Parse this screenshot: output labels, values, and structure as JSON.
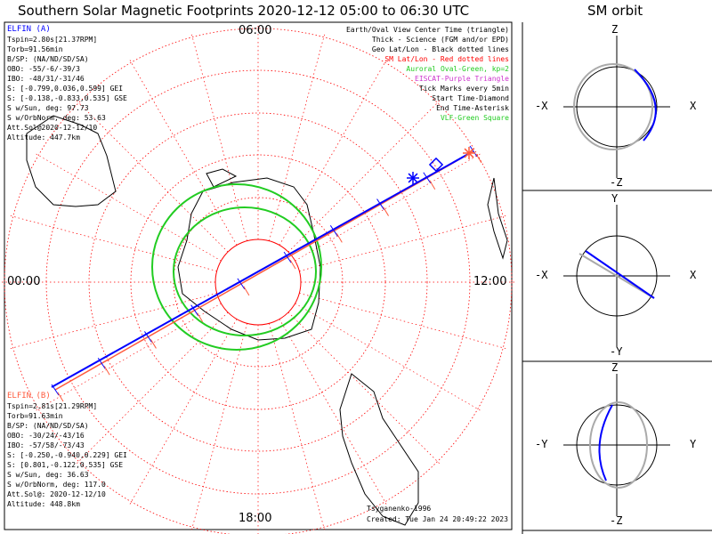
{
  "title": "Southern Solar Magnetic Footprints 2020-12-12 05:00 to 06:30 UTC",
  "sm_orbit_title": "SM orbit",
  "clock_labels": {
    "top": "06:00",
    "left": "00:00",
    "right": "12:00",
    "bottom": "18:00"
  },
  "elfin_a": {
    "name": "ELFIN (A)",
    "lines": [
      "Tspin=2.80s[21.37RPM]",
      "Torb=91.56min",
      "B/SP: (NA/ND/SD/SA)",
      "OBO: -55/-6/-39/3",
      "IBO: -48/31/-31/46",
      "S: [-0.799,0.036,0.599] GEI",
      "S: [-0.138,-0.833,0.535] GSE",
      "S w/Sun, deg: 97.73",
      "S w/OrbNorm, deg: 53.63",
      "Att.Sol@2020-12-12/10",
      "Altitude: 447.7km"
    ],
    "color": "#0000ff"
  },
  "elfin_b": {
    "name": "ELFIN (B)",
    "lines": [
      "Tspin=2.81s[21.29RPM]",
      "Torb=91.63min",
      "B/SP: (NA/ND/SD/SA)",
      "OBO: -30/24/-43/16",
      "IBO: -57/58/-73/43",
      "S: [-0.250,-0.940,0.229] GEI",
      "S: [0.801,-0.122,0.535] GSE",
      "S w/Sun, deg: 36.63",
      "S w/OrbNorm, deg: 117.0",
      "Att.Sol@: 2020-12-12/10",
      "Altitude: 448.8km"
    ],
    "color": "#ff5a3c"
  },
  "legend": [
    {
      "text": "Earth/Oval View Center Time (triangle)",
      "color": "#000000"
    },
    {
      "text": "Thick - Science (FGM and/or EPD)",
      "color": "#000000"
    },
    {
      "text": "Geo Lat/Lon - Black dotted lines",
      "color": "#000000"
    },
    {
      "text": "SM Lat/Lon - Red dotted lines",
      "color": "#ff0000"
    },
    {
      "text": "Auroral Oval-Green, kp=2",
      "color": "#22cc22"
    },
    {
      "text": "EISCAT-Purple Triangle",
      "color": "#cc33cc"
    },
    {
      "text": "Tick Marks every 5min",
      "color": "#000000"
    },
    {
      "text": "Start Time-Diamond",
      "color": "#000000"
    },
    {
      "text": "End Time-Asterisk",
      "color": "#000000"
    },
    {
      "text": "VLF-Green Square",
      "color": "#22cc22"
    }
  ],
  "credit": "Tsyganenko-1996",
  "created": "Created: Tue Jan 24 20:49:22 2023",
  "panels": [
    {
      "top": "Z",
      "bottom": "-Z",
      "left": "-X",
      "right": "X"
    },
    {
      "top": "Y",
      "bottom": "-Y",
      "left": "-X",
      "right": "X"
    },
    {
      "top": "Z",
      "bottom": "-Z",
      "left": "-Y",
      "right": "Y"
    }
  ],
  "colors": {
    "a": "#0000ff",
    "b": "#ff5a3c",
    "oval": "#22cc22",
    "grid": "#ff0000"
  }
}
